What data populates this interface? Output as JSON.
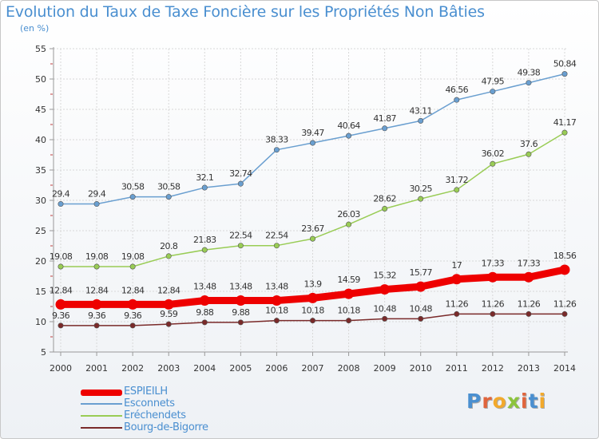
{
  "title": "Evolution du Taux de Taxe Foncière sur les Propriétés Non Bâties",
  "unit_label": "(en %)",
  "logo": {
    "text": "Proxiti",
    "letter_colors": [
      "#4a8fd0",
      "#e0643c",
      "#f2a92c",
      "#8cc43c",
      "#e0643c",
      "#4a8fd0",
      "#f2a92c"
    ]
  },
  "chart_data": {
    "type": "line",
    "title": "Evolution du Taux de Taxe Foncière sur les Propriétés Non Bâties",
    "xlabel": "",
    "ylabel": "(en %)",
    "ylim": [
      5,
      55
    ],
    "yticks": [
      5,
      10,
      15,
      20,
      25,
      30,
      35,
      40,
      45,
      50,
      55
    ],
    "grid": true,
    "legend_position": "bottom-left",
    "categories": [
      "2000",
      "2001",
      "2002",
      "2003",
      "2004",
      "2005",
      "2006",
      "2007",
      "2008",
      "2009",
      "2010",
      "2011",
      "2012",
      "2013",
      "2014"
    ],
    "series": [
      {
        "name": "ESPIEILH",
        "color": "#ee0000",
        "values": [
          12.84,
          12.84,
          12.84,
          12.84,
          13.48,
          13.48,
          13.48,
          13.9,
          14.59,
          15.32,
          15.77,
          17,
          17.33,
          17.33,
          18.56
        ],
        "labels": [
          "12.84",
          "12.84",
          "12.84",
          "12.84",
          "13.48",
          "13.48",
          "13.48",
          "13.9",
          "14.59",
          "15.32",
          "15.77",
          "17",
          "17.33",
          "17.33",
          "18.56"
        ]
      },
      {
        "name": "Esconnets",
        "color": "#6a9fd0",
        "values": [
          29.4,
          29.4,
          30.58,
          30.58,
          32.1,
          32.74,
          38.33,
          39.47,
          40.64,
          41.87,
          43.11,
          46.56,
          47.95,
          49.38,
          50.84
        ],
        "labels": [
          "29.4",
          "29.4",
          "30.58",
          "30.58",
          "32.1",
          "32.74",
          "38.33",
          "39.47",
          "40.64",
          "41.87",
          "43.11",
          "46.56",
          "47.95",
          "49.38",
          "50.84"
        ]
      },
      {
        "name": "Eréchendets",
        "color": "#99cc55",
        "values": [
          19.08,
          19.08,
          19.08,
          20.8,
          21.83,
          22.54,
          22.54,
          23.67,
          26.03,
          28.62,
          30.25,
          31.72,
          36.02,
          37.6,
          41.17
        ],
        "labels": [
          "19.08",
          "19.08",
          "19.08",
          "20.8",
          "21.83",
          "22.54",
          "22.54",
          "23.67",
          "26.03",
          "28.62",
          "30.25",
          "31.72",
          "36.02",
          "37.6",
          "41.17"
        ]
      },
      {
        "name": "Bourg-de-Bigorre",
        "color": "#7a2a2a",
        "values": [
          9.36,
          9.36,
          9.36,
          9.59,
          9.88,
          9.88,
          10.18,
          10.18,
          10.18,
          10.48,
          10.48,
          11.26,
          11.26,
          11.26,
          11.26
        ],
        "labels": [
          "9.36",
          "9.36",
          "9.36",
          "9.59",
          "9.88",
          "9.88",
          "10.18",
          "10.18",
          "10.18",
          "10.48",
          "10.48",
          "11.26",
          "11.26",
          "11.26",
          "11.26"
        ]
      }
    ]
  }
}
